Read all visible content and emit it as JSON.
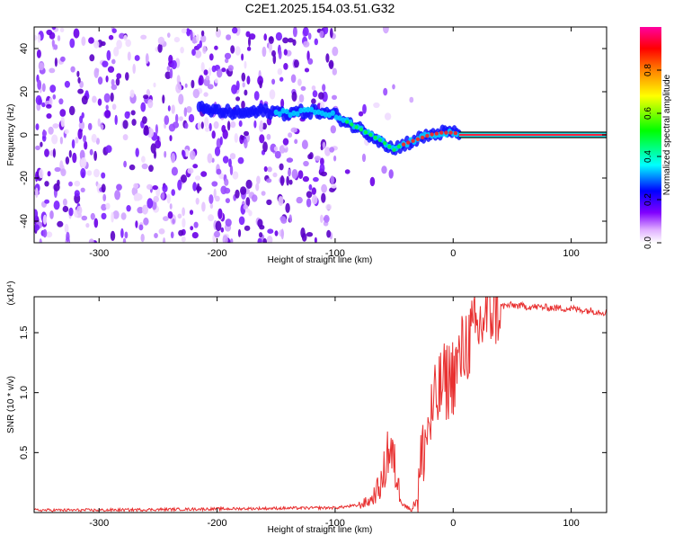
{
  "title": "C2E1.2025.154.03.51.G32",
  "chart_data": [
    {
      "type": "heatmap",
      "xlabel": "Height of straight line (km)",
      "ylabel": "Frequency (Hz)",
      "xlim": [
        -355,
        130
      ],
      "ylim": [
        -50,
        50
      ],
      "xticks": [
        -300,
        -200,
        -100,
        0,
        100
      ],
      "yticks": [
        -40,
        -20,
        0,
        20,
        40
      ],
      "colorbar": {
        "label": "Normalized spectral amplitude",
        "range": [
          0,
          1
        ],
        "ticks": [
          "0.0",
          "0.2",
          "0.4",
          "0.6",
          "0.8"
        ],
        "colors": [
          "#ffffff",
          "#e0b0ff",
          "#8000ff",
          "#0000ff",
          "#00ffff",
          "#00ff00",
          "#ffff00",
          "#ff8000",
          "#ff0000",
          "#ff00a0"
        ]
      },
      "ridge": {
        "x": [
          -215,
          -200,
          -180,
          -160,
          -140,
          -120,
          -100,
          -90,
          -80,
          -70,
          -60,
          -55,
          -50,
          -45,
          -40,
          -30,
          -20,
          -10,
          0,
          10,
          50,
          100,
          130
        ],
        "y": [
          12,
          11,
          10,
          11,
          10,
          11,
          9,
          6,
          3,
          0,
          -3,
          -5,
          -7,
          -5,
          -4,
          -2,
          0,
          1,
          1,
          0,
          0,
          0,
          0
        ]
      },
      "noise_region": {
        "x_from": -355,
        "x_to": -100
      }
    },
    {
      "type": "line",
      "xlabel": "Height of straight line (km)",
      "ylabel": "SNR (10 * v/v)",
      "multiplier": "(x10⁴)",
      "xlim": [
        -355,
        130
      ],
      "ylim": [
        0,
        1.8
      ],
      "xticks": [
        -300,
        -200,
        -100,
        0,
        100
      ],
      "yticks": [
        "0.5",
        "1.0",
        "1.5"
      ],
      "series": [
        {
          "color": "#e83030",
          "x": [
            -355,
            -300,
            -250,
            -200,
            -150,
            -100,
            -80,
            -70,
            -60,
            -55,
            -50,
            -45,
            -40,
            -35,
            -30,
            -25,
            -20,
            -15,
            -10,
            -5,
            0,
            5,
            10,
            15,
            20,
            25,
            30,
            40,
            50,
            60,
            80,
            100,
            120,
            130
          ],
          "values": [
            0.02,
            0.02,
            0.025,
            0.03,
            0.035,
            0.04,
            0.06,
            0.1,
            0.25,
            0.55,
            0.4,
            0.15,
            0.05,
            0.02,
            0.15,
            0.55,
            0.75,
            0.9,
            1.05,
            1.1,
            1.15,
            1.25,
            1.4,
            1.45,
            1.5,
            1.6,
            1.68,
            1.72,
            1.73,
            1.72,
            1.71,
            1.7,
            1.68,
            1.67
          ]
        }
      ]
    }
  ]
}
